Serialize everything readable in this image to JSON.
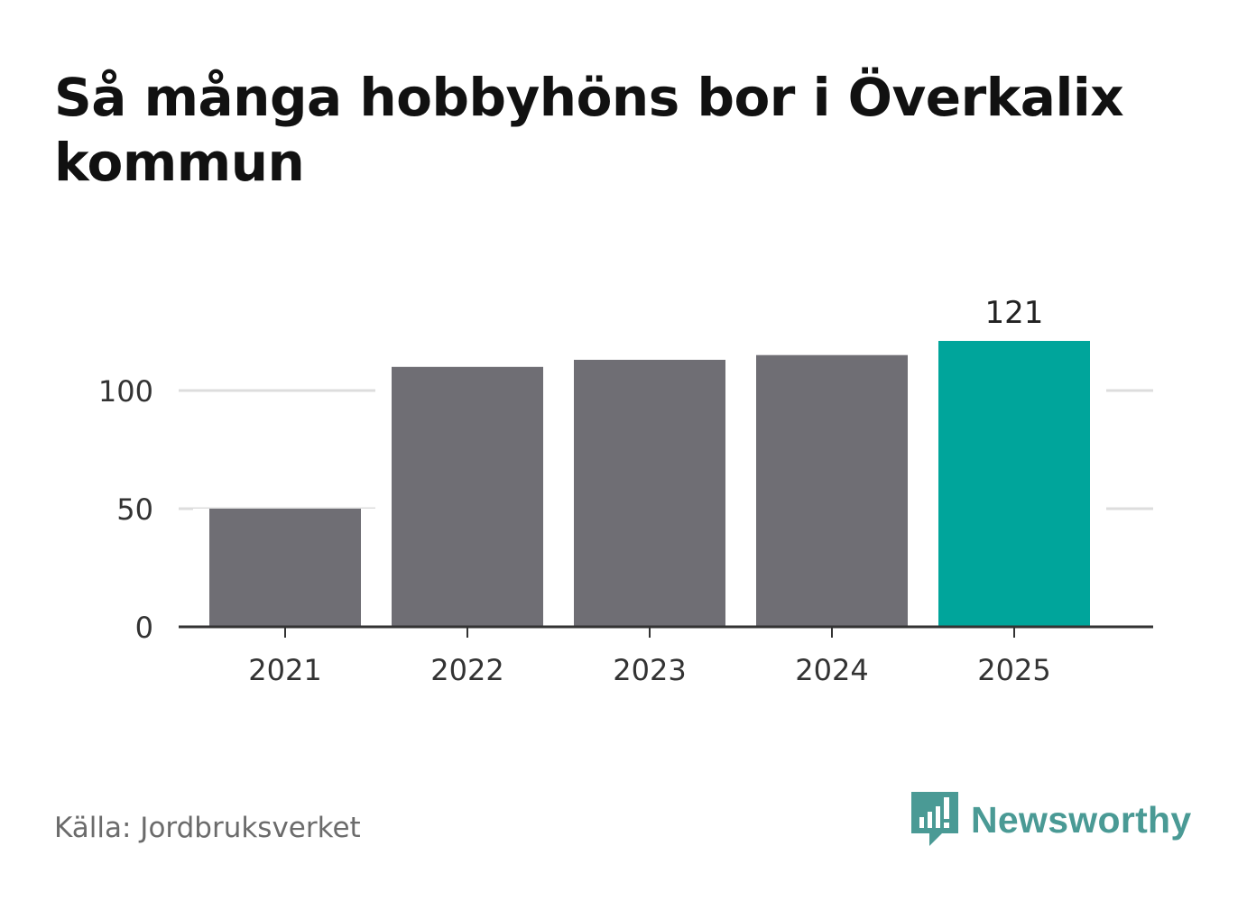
{
  "header": {
    "title": "Så många hobbyhöns bor i Överkalix kommun"
  },
  "chart_data": {
    "type": "bar",
    "title": "Så många hobbyhöns bor i Överkalix kommun",
    "categories": [
      "2021",
      "2022",
      "2023",
      "2024",
      "2025"
    ],
    "values": [
      50,
      110,
      113,
      115,
      121
    ],
    "highlight_index": 4,
    "highlight_label": "121",
    "y_ticks": [
      0,
      50,
      100
    ],
    "ylim": [
      0,
      125
    ],
    "xlabel": "",
    "ylabel": "",
    "grid": true,
    "legend": "none",
    "colors": {
      "bar": "#6f6e74",
      "highlight": "#00a59b",
      "grid": "#dddddd",
      "axis": "#333333"
    }
  },
  "footer": {
    "source": "Källa: Jordbruksverket",
    "brand": "Newsworthy",
    "brand_icon": "newsworthy-chart-bubble-icon",
    "brand_color": "#4a9a95"
  }
}
